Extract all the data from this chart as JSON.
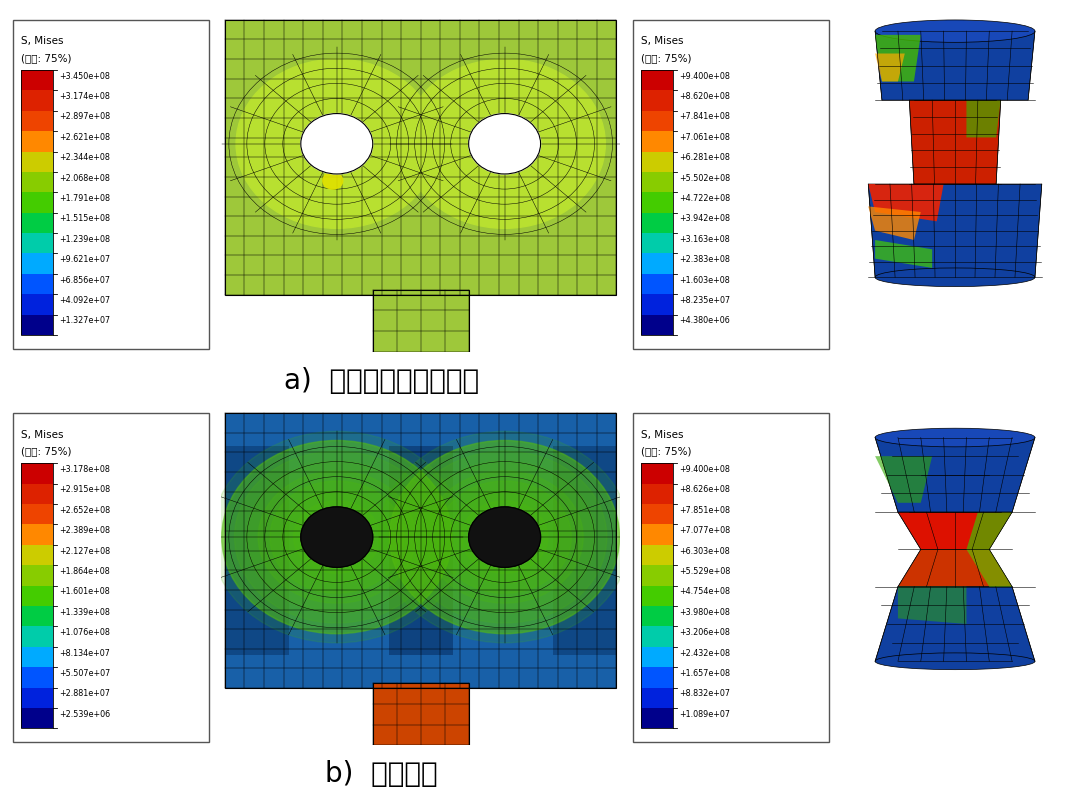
{
  "legend_a_left": {
    "title1": "S, Mises",
    "title2": "(平均: 75%)",
    "values": [
      "+3.450e+08",
      "+3.174e+08",
      "+2.897e+08",
      "+2.621e+08",
      "+2.344e+08",
      "+2.068e+08",
      "+1.791e+08",
      "+1.515e+08",
      "+1.239e+08",
      "+9.621e+07",
      "+6.856e+07",
      "+4.092e+07",
      "+1.327e+07"
    ]
  },
  "legend_a_right": {
    "title1": "S, Mises",
    "title2": "(平均: 75%)",
    "values": [
      "+9.400e+08",
      "+8.620e+08",
      "+7.841e+08",
      "+7.061e+08",
      "+6.281e+08",
      "+5.502e+08",
      "+4.722e+08",
      "+3.942e+08",
      "+3.163e+08",
      "+2.383e+08",
      "+1.603e+08",
      "+8.235e+07",
      "+4.380e+06"
    ]
  },
  "legend_b_left": {
    "title1": "S, Mises",
    "title2": "(平均: 75%)",
    "values": [
      "+3.178e+08",
      "+2.915e+08",
      "+2.652e+08",
      "+2.389e+08",
      "+2.127e+08",
      "+1.864e+08",
      "+1.601e+08",
      "+1.339e+08",
      "+1.076e+08",
      "+8.134e+07",
      "+5.507e+07",
      "+2.881e+07",
      "+2.539e+06"
    ]
  },
  "legend_b_right": {
    "title1": "S, Mises",
    "title2": "(平均: 75%)",
    "values": [
      "+9.400e+08",
      "+8.626e+08",
      "+7.851e+08",
      "+7.077e+08",
      "+6.303e+08",
      "+5.529e+08",
      "+4.754e+08",
      "+3.980e+08",
      "+3.206e+08",
      "+2.432e+08",
      "+1.657e+08",
      "+8.832e+07",
      "+1.089e+07"
    ]
  },
  "caption_a": "a)  连接板孔壁挤压破坏",
  "caption_b": "b)  螺栓剪断",
  "bg_color": "#ffffff",
  "swatch_colors": [
    "#cc0000",
    "#dd2200",
    "#ee4400",
    "#ff8800",
    "#cccc00",
    "#88cc00",
    "#44cc00",
    "#00cc44",
    "#00ccaa",
    "#00aaff",
    "#0055ff",
    "#0022dd",
    "#00008b"
  ]
}
